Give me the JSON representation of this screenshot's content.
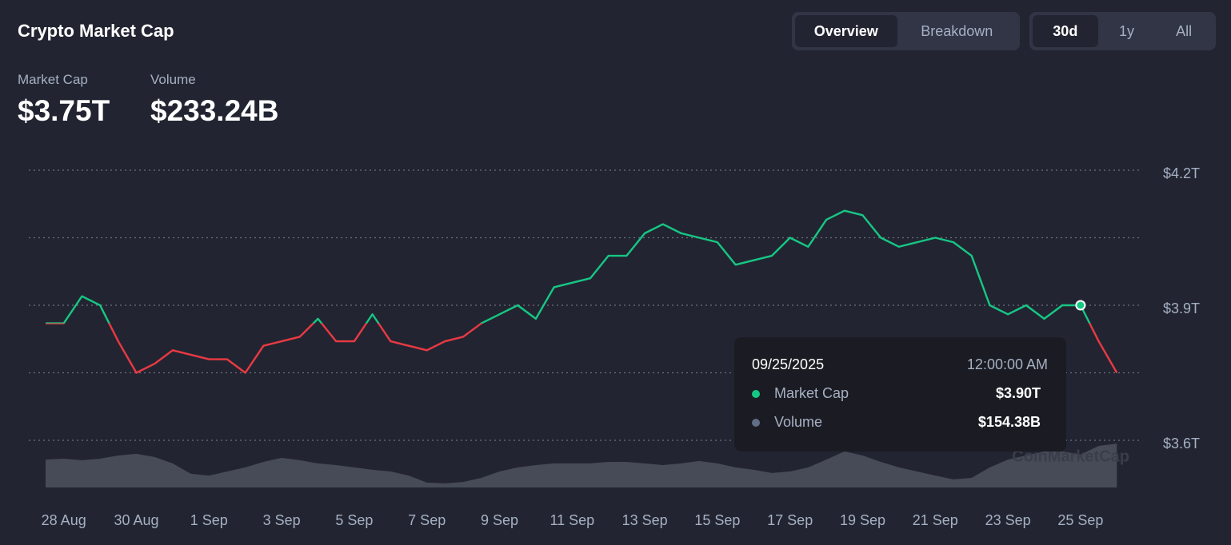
{
  "header": {
    "title": "Crypto Market Cap",
    "stats": [
      {
        "label": "Market Cap",
        "value": "$3.75T"
      },
      {
        "label": "Volume",
        "value": "$233.24B"
      }
    ],
    "tabs": [
      "Overview",
      "Breakdown"
    ],
    "ranges": [
      "30d",
      "1y",
      "All"
    ]
  },
  "tooltip": {
    "date": "09/25/2025",
    "time": "12:00:00 AM",
    "rows": [
      {
        "name": "Market Cap",
        "value": "$3.90T",
        "color": "#16c784"
      },
      {
        "name": "Volume",
        "value": "$154.38B",
        "color": "#616e85"
      }
    ]
  },
  "watermark": "CoinMarketCap",
  "chart_data": {
    "type": "line",
    "categories": [
      null,
      "28 Aug",
      null,
      null,
      null,
      "30 Aug",
      null,
      null,
      null,
      "1 Sep",
      null,
      null,
      null,
      "3 Sep",
      null,
      null,
      null,
      "5 Sep",
      null,
      null,
      null,
      "7 Sep",
      null,
      null,
      null,
      "9 Sep",
      null,
      null,
      null,
      "11 Sep",
      null,
      null,
      null,
      "13 Sep",
      null,
      null,
      null,
      "15 Sep",
      null,
      null,
      null,
      "17 Sep",
      null,
      null,
      null,
      "19 Sep",
      null,
      null,
      null,
      "21 Sep",
      null,
      null,
      null,
      "23 Sep",
      null,
      null,
      null,
      "25 Sep",
      null,
      null
    ],
    "series": [
      {
        "name": "Market Cap",
        "up_color": "#16c784",
        "down_color": "#ea3943",
        "values": [
          3.86,
          3.86,
          3.92,
          3.9,
          3.82,
          3.75,
          3.77,
          3.8,
          3.79,
          3.78,
          3.78,
          3.75,
          3.81,
          3.82,
          3.83,
          3.87,
          3.82,
          3.82,
          3.88,
          3.82,
          3.81,
          3.8,
          3.82,
          3.83,
          3.86,
          3.88,
          3.9,
          3.87,
          3.94,
          3.95,
          3.96,
          4.01,
          4.01,
          4.06,
          4.08,
          4.06,
          4.05,
          4.04,
          3.99,
          4.0,
          4.01,
          4.05,
          4.03,
          4.09,
          4.11,
          4.1,
          4.05,
          4.03,
          4.04,
          4.05,
          4.04,
          4.01,
          3.9,
          3.88,
          3.9,
          3.87,
          3.9,
          3.9,
          3.82,
          3.75
        ]
      },
      {
        "name": "Volume",
        "axis": "y2",
        "color": "#4b4f5c",
        "values": [
          131,
          135,
          128,
          135,
          150,
          158,
          143,
          113,
          64,
          56,
          75,
          94,
          120,
          139,
          128,
          113,
          105,
          94,
          83,
          75,
          56,
          23,
          19,
          26,
          45,
          75,
          94,
          105,
          113,
          113,
          113,
          120,
          120,
          113,
          105,
          113,
          124,
          113,
          94,
          83,
          68,
          75,
          94,
          131,
          169,
          150,
          120,
          94,
          75,
          56,
          38,
          45,
          94,
          131,
          150,
          169,
          169,
          154.38,
          195,
          206
        ]
      }
    ],
    "ylim": [
      3.6,
      4.2
    ],
    "yticks": [
      {
        "value": 3.6,
        "label": "$3.6T"
      },
      {
        "value": 3.9,
        "label": "$3.9T"
      },
      {
        "value": 4.2,
        "label": "$4.2T"
      }
    ],
    "ygrid": [
      3.6,
      3.75,
      3.9,
      4.05,
      4.2
    ],
    "y2lim": [
      0,
      600
    ],
    "grid": true
  }
}
